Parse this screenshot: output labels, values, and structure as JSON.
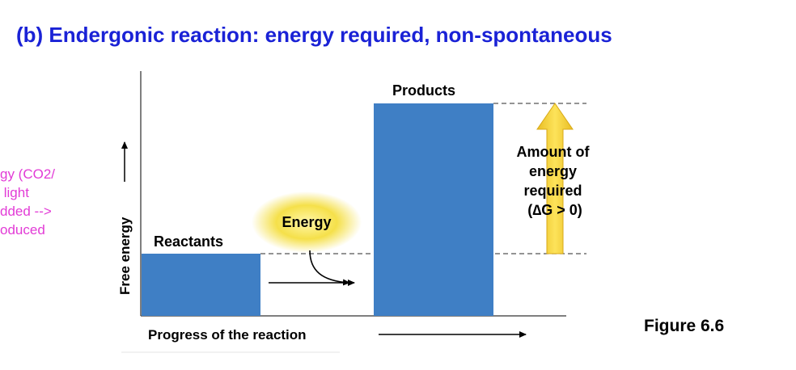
{
  "title": "(b) Endergonic reaction: energy required, non-spontaneous",
  "side_note_lines": [
    "gy (CO2/",
    "light",
    "dded -->",
    "oduced"
  ],
  "figure_label": "Figure 6.6",
  "diagram": {
    "y_axis_label": "Free energy",
    "x_axis_label": "Progress of the reaction",
    "reactants_label": "Reactants",
    "products_label": "Products",
    "energy_label": "Energy",
    "amount_label_lines": [
      "Amount of",
      "energy",
      "required",
      "(∆G > 0)"
    ]
  },
  "colors": {
    "title": "#1a22d6",
    "side_note": "#e23bd6",
    "bar_fill": "#3f7fc5",
    "arrow_fill": "#f7d33c",
    "glow": "#f5e04a"
  }
}
